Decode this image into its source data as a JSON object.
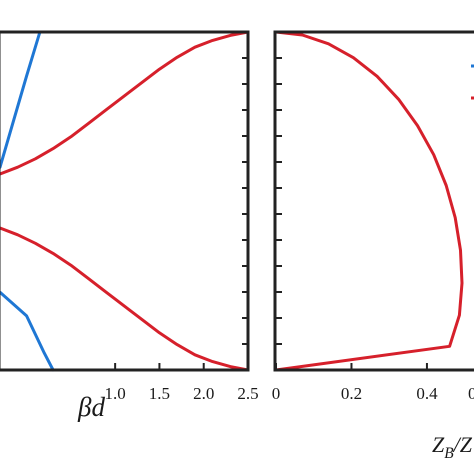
{
  "chart_data": [
    {
      "type": "line",
      "xlabel": "βd",
      "ylabel": "",
      "xlim": [
        -0.3,
        2.5
      ],
      "ylim": [
        0,
        1
      ],
      "x_ticks": [
        1.0,
        1.5,
        2.0,
        2.5
      ],
      "x_tick_labels": [
        "1.0",
        "1.5",
        "2.0",
        "2.5"
      ],
      "grid": false,
      "series": [
        {
          "color": "#1f77d4",
          "segments": [
            [
              [
                -0.3,
                0.6
              ],
              [
                0.0,
                0.87
              ],
              [
                0.15,
                1.0
              ]
            ],
            [
              [
                -0.3,
                0.23
              ],
              [
                0.0,
                0.16
              ],
              [
                0.2,
                0.05
              ],
              [
                0.3,
                0.0
              ]
            ]
          ]
        },
        {
          "color": "#d6202b",
          "points": [
            [
              2.5,
              1.0
            ],
            [
              2.3,
              0.99
            ],
            [
              2.1,
              0.975
            ],
            [
              1.9,
              0.955
            ],
            [
              1.7,
              0.925
            ],
            [
              1.5,
              0.89
            ],
            [
              1.3,
              0.85
            ],
            [
              1.1,
              0.81
            ],
            [
              0.9,
              0.77
            ],
            [
              0.7,
              0.73
            ],
            [
              0.5,
              0.69
            ],
            [
              0.3,
              0.655
            ],
            [
              0.1,
              0.625
            ],
            [
              -0.1,
              0.6
            ],
            [
              -0.3,
              0.58
            ]
          ]
        },
        {
          "color": "#d6202b",
          "points": [
            [
              -0.3,
              0.42
            ],
            [
              -0.1,
              0.4
            ],
            [
              0.1,
              0.375
            ],
            [
              0.3,
              0.345
            ],
            [
              0.5,
              0.31
            ],
            [
              0.7,
              0.27
            ],
            [
              0.9,
              0.23
            ],
            [
              1.1,
              0.19
            ],
            [
              1.3,
              0.15
            ],
            [
              1.5,
              0.11
            ],
            [
              1.7,
              0.075
            ],
            [
              1.9,
              0.045
            ],
            [
              2.1,
              0.025
            ],
            [
              2.3,
              0.01
            ],
            [
              2.5,
              0.0
            ]
          ]
        }
      ]
    },
    {
      "type": "line",
      "xlabel": "Z_B/Z",
      "ylabel": "",
      "xlim": [
        0,
        0.53
      ],
      "ylim": [
        0,
        1
      ],
      "x_ticks": [
        0,
        0.2,
        0.4
      ],
      "x_tick_labels": [
        "0",
        "0.2",
        "0.4"
      ],
      "grid": false,
      "series": [
        {
          "color": "#d6202b",
          "points": [
            [
              0.0,
              1.0
            ],
            [
              0.07,
              0.991
            ],
            [
              0.139,
              0.965
            ],
            [
              0.205,
              0.924
            ],
            [
              0.268,
              0.869
            ],
            [
              0.325,
              0.801
            ],
            [
              0.375,
              0.723
            ],
            [
              0.418,
              0.637
            ],
            [
              0.451,
              0.546
            ],
            [
              0.475,
              0.451
            ],
            [
              0.489,
              0.354
            ],
            [
              0.493,
              0.257
            ],
            [
              0.486,
              0.162
            ],
            [
              0.46,
              0.07
            ],
            [
              0.0,
              0.0
            ]
          ]
        }
      ]
    }
  ]
}
